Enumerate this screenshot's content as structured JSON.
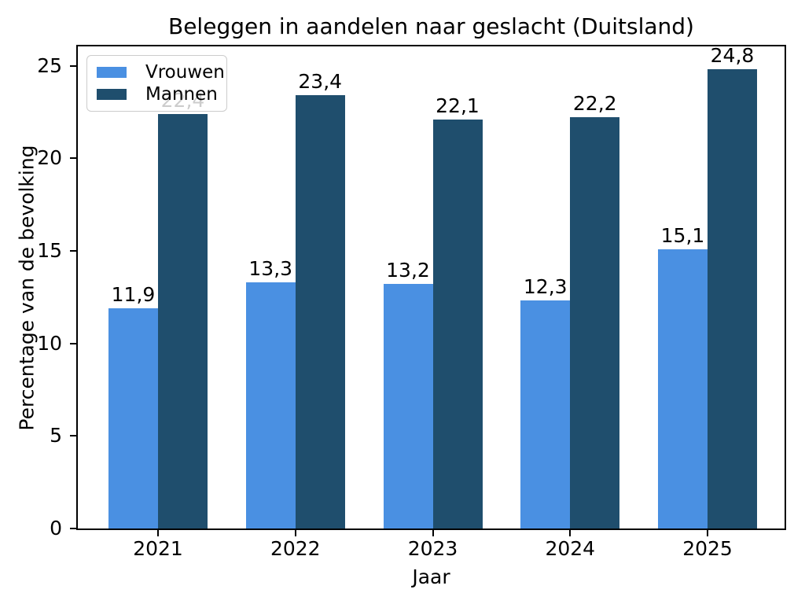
{
  "chart_data": {
    "type": "bar",
    "title": "Beleggen in aandelen naar geslacht (Duitsland)",
    "xlabel": "Jaar",
    "ylabel": "Percentage van de bevolking",
    "categories": [
      "2021",
      "2022",
      "2023",
      "2024",
      "2025"
    ],
    "series": [
      {
        "name": "Vrouwen",
        "color": "#4a90e2",
        "values": [
          11.9,
          13.3,
          13.2,
          12.3,
          15.1
        ],
        "labels": [
          "11,9",
          "13,3",
          "13,2",
          "12,3",
          "15,1"
        ]
      },
      {
        "name": "Mannen",
        "color": "#1f4e6d",
        "values": [
          22.4,
          23.4,
          22.1,
          22.2,
          24.8
        ],
        "labels": [
          "22,4",
          "23,4",
          "22,1",
          "22,2",
          "24,8"
        ]
      }
    ],
    "ylim": [
      0,
      26.04
    ],
    "yticks": [
      0,
      5,
      10,
      15,
      20,
      25
    ],
    "ytick_labels": [
      "0",
      "5",
      "10",
      "15",
      "20",
      "25"
    ],
    "legend_position": "upper left",
    "grid": false,
    "decimal_separator": ","
  }
}
